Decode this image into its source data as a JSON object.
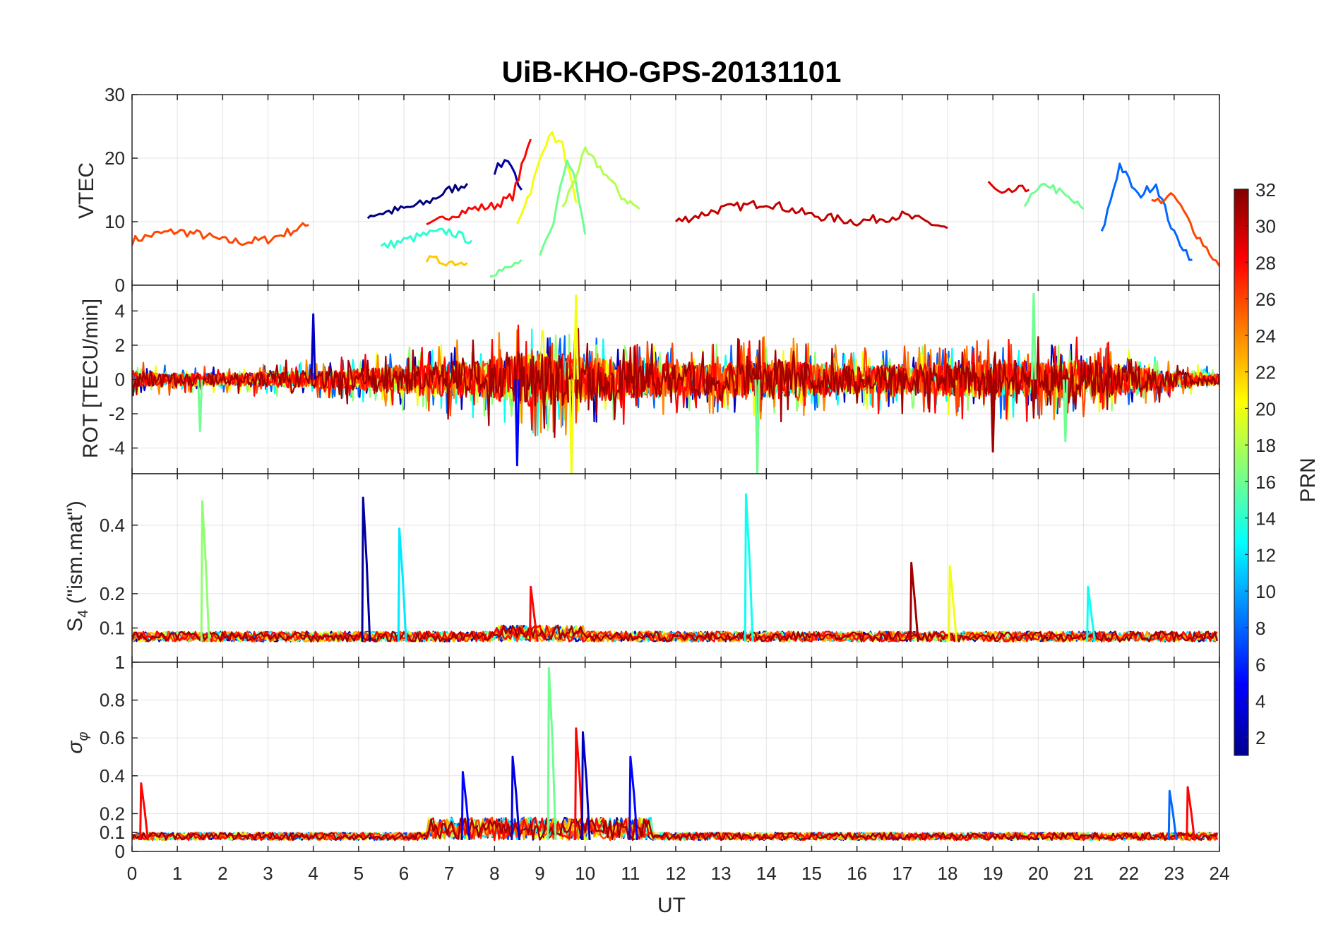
{
  "chart_data": {
    "type": "line",
    "title": "UiB-KHO-GPS-20131101",
    "xlabel": "UT",
    "xlim": [
      0,
      24
    ],
    "xticks": [
      "0",
      "1",
      "2",
      "3",
      "4",
      "5",
      "6",
      "7",
      "8",
      "9",
      "10",
      "11",
      "12",
      "13",
      "14",
      "15",
      "16",
      "17",
      "18",
      "19",
      "20",
      "21",
      "22",
      "23",
      "24"
    ],
    "grid": true,
    "colorbar": {
      "label": "PRN",
      "colormap": "jet",
      "range": [
        1,
        32
      ],
      "ticks": [
        "2",
        "4",
        "6",
        "8",
        "10",
        "12",
        "14",
        "16",
        "18",
        "20",
        "22",
        "24",
        "26",
        "28",
        "30",
        "32"
      ]
    },
    "panels": [
      {
        "name": "vtec",
        "ylabel": "VTEC",
        "ylim": [
          0,
          30
        ],
        "yticks": [
          "0",
          "10",
          "20",
          "30"
        ],
        "series": [
          {
            "prn": 26,
            "x": [
              0,
              0.5,
              1,
              1.5,
              2,
              2.5,
              3,
              3.5,
              3.9
            ],
            "y": [
              7,
              8,
              8.5,
              8,
              7,
              6.8,
              7.2,
              8.5,
              9.5
            ]
          },
          {
            "prn": 1,
            "x": [
              5.2,
              5.6,
              6,
              6.5,
              7,
              7.4
            ],
            "y": [
              11,
              11.5,
              12,
              13,
              15,
              16
            ]
          },
          {
            "prn": 2,
            "x": [
              8,
              8.3,
              8.6
            ],
            "y": [
              18,
              20,
              15
            ]
          },
          {
            "prn": 28,
            "x": [
              6.5,
              7,
              7.5,
              8,
              8.4,
              8.8
            ],
            "y": [
              9,
              11,
              12,
              12.5,
              14,
              23
            ]
          },
          {
            "prn": 20,
            "x": [
              8.5,
              8.8,
              9.2,
              9.5,
              9.8
            ],
            "y": [
              10,
              15,
              24,
              22,
              13
            ]
          },
          {
            "prn": 16,
            "x": [
              9,
              9.3,
              9.6,
              9.8,
              10
            ],
            "y": [
              4,
              10,
              20,
              16,
              8
            ]
          },
          {
            "prn": 18,
            "x": [
              9.5,
              10,
              10.4,
              10.8,
              11.2
            ],
            "y": [
              12,
              21,
              18,
              14,
              12
            ]
          },
          {
            "prn": 30,
            "x": [
              12,
              13,
              14,
              15,
              16,
              17,
              18
            ],
            "y": [
              10,
              12,
              13,
              11,
              10,
              11,
              9
            ]
          },
          {
            "prn": 29,
            "x": [
              18.9,
              19.2,
              19.5,
              19.8
            ],
            "y": [
              16,
              14,
              15,
              15
            ]
          },
          {
            "prn": 16,
            "x": [
              19.7,
              20.2,
              20.6,
              21
            ],
            "y": [
              13,
              16,
              14,
              12
            ]
          },
          {
            "prn": 8,
            "x": [
              21.4,
              21.8,
              22.2,
              22.6,
              23,
              23.4
            ],
            "y": [
              8,
              19,
              14,
              16,
              8,
              4
            ]
          },
          {
            "prn": 26,
            "x": [
              22.5,
              23,
              23.5,
              24
            ],
            "y": [
              13,
              14,
              8,
              3
            ]
          },
          {
            "prn": 14,
            "x": [
              5.5,
              6,
              6.5,
              7,
              7.5
            ],
            "y": [
              6,
              7,
              8,
              8.5,
              7
            ]
          },
          {
            "prn": 22,
            "x": [
              6.5,
              7,
              7.4
            ],
            "y": [
              4,
              3.7,
              3.5
            ]
          },
          {
            "prn": 16,
            "x": [
              7.9,
              8.3,
              8.6
            ],
            "y": [
              2,
              2.5,
              4
            ]
          }
        ]
      },
      {
        "name": "rot",
        "ylabel": "ROT [TECU/min]",
        "ylim": [
          -5.5,
          5.5
        ],
        "yticks": [
          "-4",
          "-2",
          "0",
          "2",
          "4"
        ],
        "envelope": {
          "x": [
            0,
            1,
            2,
            3,
            4,
            5,
            6,
            7,
            8,
            8.5,
            9,
            9.5,
            10,
            11,
            12,
            13,
            14,
            15,
            16,
            17,
            18,
            19,
            20,
            21,
            22,
            23,
            24
          ],
          "amplitude": [
            1.0,
            0.9,
            0.8,
            1.0,
            1.2,
            1.4,
            2.0,
            2.3,
            2.6,
            3.5,
            3.6,
            3.4,
            3.0,
            2.5,
            2.2,
            2.2,
            2.6,
            2.3,
            1.9,
            2.0,
            2.2,
            2.6,
            2.4,
            2.5,
            1.9,
            1.1,
            0.8
          ]
        },
        "spikes": [
          {
            "prn": 16,
            "x": 1.5,
            "y": -3.0
          },
          {
            "prn": 3,
            "x": 4.0,
            "y": 3.8
          },
          {
            "prn": 5,
            "x": 8.5,
            "y": -5.0
          },
          {
            "prn": 20,
            "x": 9.8,
            "y": 4.9
          },
          {
            "prn": 20,
            "x": 9.7,
            "y": -5.5
          },
          {
            "prn": 16,
            "x": 13.8,
            "y": -5.5
          },
          {
            "prn": 31,
            "x": 19.0,
            "y": -4.2
          },
          {
            "prn": 16,
            "x": 19.9,
            "y": 5.0
          },
          {
            "prn": 16,
            "x": 20.6,
            "y": -3.6
          }
        ]
      },
      {
        "name": "s4",
        "ylabel": "S4 (\"ism.mat\")",
        "ylim": [
          0,
          0.55
        ],
        "yticks": [
          "0.1",
          "0.2",
          "0.4"
        ],
        "spikes": [
          {
            "prn": 17,
            "x": 1.55,
            "y": 0.47
          },
          {
            "prn": 2,
            "x": 5.1,
            "y": 0.48
          },
          {
            "prn": 12,
            "x": 5.9,
            "y": 0.39
          },
          {
            "prn": 13,
            "x": 13.55,
            "y": 0.49
          },
          {
            "prn": 31,
            "x": 17.2,
            "y": 0.29
          },
          {
            "prn": 20,
            "x": 18.05,
            "y": 0.28
          },
          {
            "prn": 13,
            "x": 21.1,
            "y": 0.22
          },
          {
            "prn": 28,
            "x": 8.8,
            "y": 0.22
          }
        ]
      },
      {
        "name": "sigma_phi",
        "ylabel": "σφ",
        "ylim": [
          0,
          1
        ],
        "yticks": [
          "0",
          "0.1",
          "0.2",
          "0.4",
          "0.6",
          "0.8",
          "1"
        ],
        "spikes": [
          {
            "prn": 28,
            "x": 0.2,
            "y": 0.36
          },
          {
            "prn": 5,
            "x": 7.3,
            "y": 0.42
          },
          {
            "prn": 4,
            "x": 8.4,
            "y": 0.5
          },
          {
            "prn": 16,
            "x": 9.2,
            "y": 0.97
          },
          {
            "prn": 28,
            "x": 9.8,
            "y": 0.65
          },
          {
            "prn": 3,
            "x": 9.95,
            "y": 0.63
          },
          {
            "prn": 5,
            "x": 11.0,
            "y": 0.5
          },
          {
            "prn": 28,
            "x": 23.3,
            "y": 0.34
          },
          {
            "prn": 8,
            "x": 22.9,
            "y": 0.32
          }
        ]
      }
    ]
  }
}
